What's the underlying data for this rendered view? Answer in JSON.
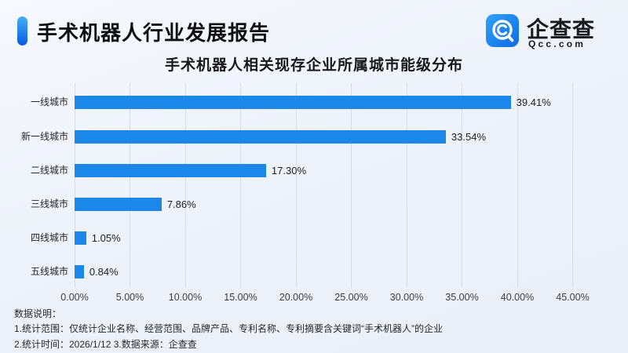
{
  "header": {
    "title": "手术机器人行业发展报告",
    "accent_color_top": "#41b0f8",
    "accent_color_bottom": "#0a5ae2",
    "logo": {
      "name": "企查查",
      "domain": "Qcc.com",
      "icon": "qcc-magnifier-icon",
      "icon_color_top": "#2fa3f7",
      "icon_color_bottom": "#0f6be8"
    }
  },
  "chart_data": {
    "type": "bar",
    "orientation": "horizontal",
    "title": "手术机器人相关现存企业所属城市能级分布",
    "categories": [
      "一线城市",
      "新一线城市",
      "二线城市",
      "三线城市",
      "四线城市",
      "五线城市"
    ],
    "values": [
      39.41,
      33.54,
      17.3,
      7.86,
      1.05,
      0.84
    ],
    "value_labels": [
      "39.41%",
      "33.54%",
      "17.30%",
      "7.86%",
      "1.05%",
      "0.84%"
    ],
    "x_ticks": [
      "0.00%",
      "5.00%",
      "10.00%",
      "15.00%",
      "20.00%",
      "25.00%",
      "30.00%",
      "35.00%",
      "40.00%",
      "45.00%"
    ],
    "xlim": [
      0,
      45
    ],
    "grid": true,
    "legend": false,
    "bar_color": "#1b87e8",
    "gridline_color": "#d8dce6"
  },
  "footer": {
    "heading": "数据说明：",
    "note1": "1.统计范围：仅统计企业名称、经营范围、品牌产品、专利名称、专利摘要含关键词“手术机器人”的企业",
    "note2": "2.统计时间：2026/1/12  3.数据来源：企查查"
  }
}
